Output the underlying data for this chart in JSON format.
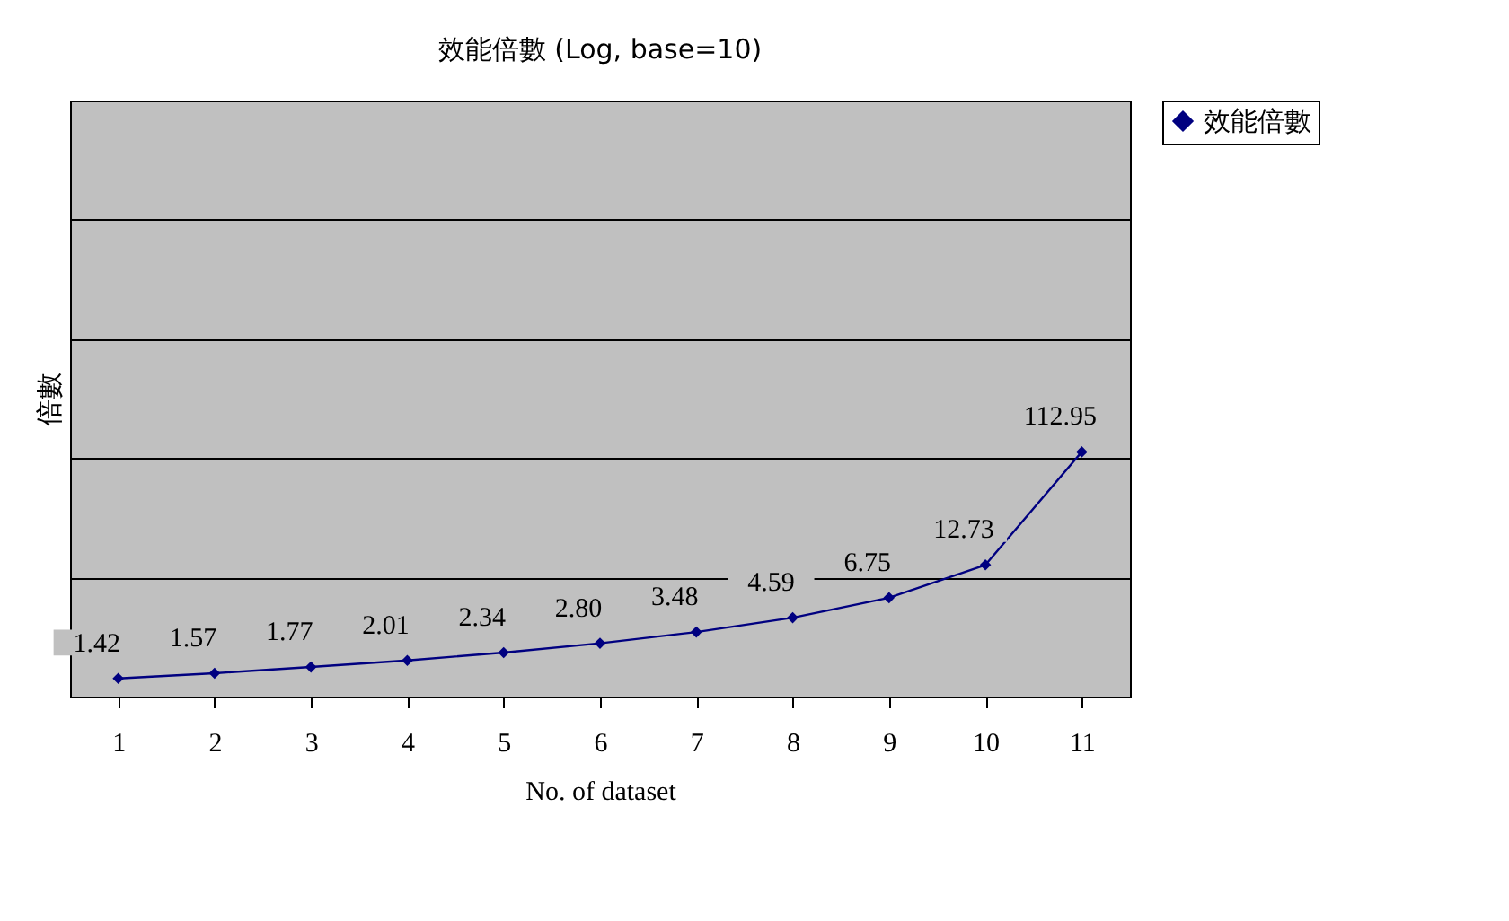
{
  "chart_data": {
    "type": "line",
    "title": "效能倍數 (Log, base=10)",
    "xlabel": "No. of dataset",
    "ylabel": "倍數",
    "categories": [
      "1",
      "2",
      "3",
      "4",
      "5",
      "6",
      "7",
      "8",
      "9",
      "10",
      "11"
    ],
    "series": [
      {
        "name": "效能倍數",
        "color": "#000080",
        "values": [
          1.42,
          1.57,
          1.77,
          2.01,
          2.34,
          2.8,
          3.48,
          4.59,
          6.75,
          12.73,
          112.95
        ],
        "value_labels": [
          "1.42",
          "1.57",
          "1.77",
          "2.01",
          "2.34",
          "2.80",
          "3.48",
          "4.59",
          "6.75",
          "12.73",
          "112.95"
        ]
      }
    ],
    "log": true,
    "ylim": [
      1,
      100000
    ],
    "yticks": [
      {
        "value": 1,
        "label": null
      },
      {
        "value": 10,
        "label": null
      },
      {
        "value": 100,
        "label": null
      },
      {
        "value": 1000,
        "label": null
      },
      {
        "value": 10000,
        "label": null
      },
      {
        "value": 100000,
        "label": null
      }
    ],
    "tick_labels": "x",
    "grid": "y",
    "legend": "right",
    "marker": "diamond",
    "line_style": "solid"
  }
}
